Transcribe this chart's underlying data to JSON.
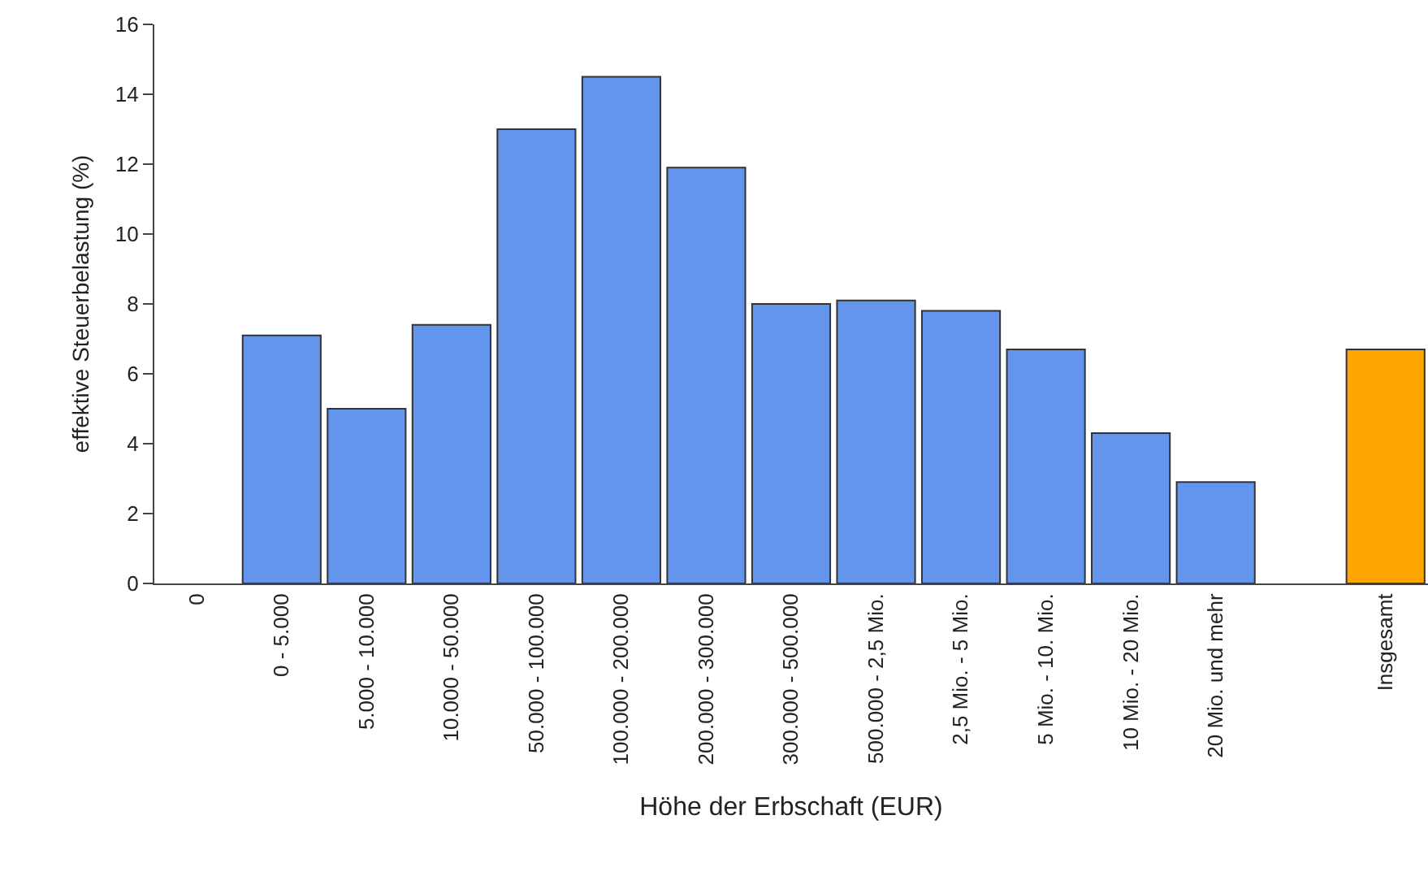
{
  "chart_data": {
    "type": "bar",
    "xlabel": "Höhe der Erbschaft (EUR)",
    "ylabel": "effektive Steuerbelastung (%)",
    "categories": [
      "0",
      "0 - 5.000",
      "5.000 - 10.000",
      "10.000 - 50.000",
      "50.000 - 100.000",
      "100.000 - 200.000",
      "200.000 - 300.000",
      "300.000 - 500.000",
      "500.000 - 2,5 Mio.",
      "2,5 Mio. - 5 Mio.",
      "5 Mio. - 10. Mio.",
      "10 Mio. - 20 Mio.",
      "20 Mio. und mehr",
      null,
      "Insgesamt"
    ],
    "values": [
      0,
      7.1,
      5.0,
      7.4,
      13.0,
      14.5,
      11.9,
      8.0,
      8.1,
      7.8,
      6.7,
      4.3,
      2.9,
      null,
      6.7
    ],
    "colors": [
      "#6495ed",
      "#6495ed",
      "#6495ed",
      "#6495ed",
      "#6495ed",
      "#6495ed",
      "#6495ed",
      "#6495ed",
      "#6495ed",
      "#6495ed",
      "#6495ed",
      "#6495ed",
      "#6495ed",
      "#6495ed",
      "#ffa500"
    ],
    "ylim": [
      0,
      16
    ],
    "yticks": [
      0,
      2,
      4,
      6,
      8,
      10,
      12,
      14,
      16
    ],
    "grid": false
  }
}
